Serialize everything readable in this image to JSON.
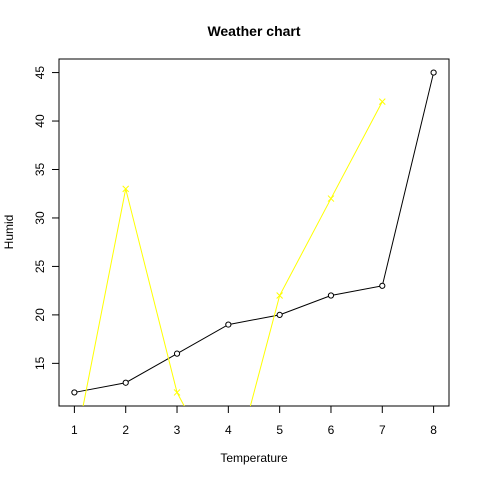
{
  "chart_data": {
    "type": "line",
    "title": "Weather chart",
    "xlabel": "Temperature",
    "ylabel": "Humid",
    "xlim": [
      0.7,
      8.3
    ],
    "ylim": [
      10.6,
      46.4
    ],
    "x_ticks": [
      1,
      2,
      3,
      4,
      5,
      6,
      7,
      8
    ],
    "y_ticks": [
      15,
      20,
      25,
      30,
      35,
      40,
      45
    ],
    "grid": false,
    "series": [
      {
        "color": "#000000",
        "marker": "circle",
        "x": [
          1,
          2,
          3,
          4,
          5,
          6,
          7,
          8
        ],
        "y": [
          12,
          13,
          16,
          19,
          20,
          22,
          23,
          45
        ]
      },
      {
        "color": "#FFFF00",
        "marker": "cross",
        "x": [
          1,
          2,
          3,
          4,
          5,
          6,
          7
        ],
        "y": [
          6,
          33,
          12,
          2,
          22,
          32,
          42
        ]
      }
    ]
  }
}
